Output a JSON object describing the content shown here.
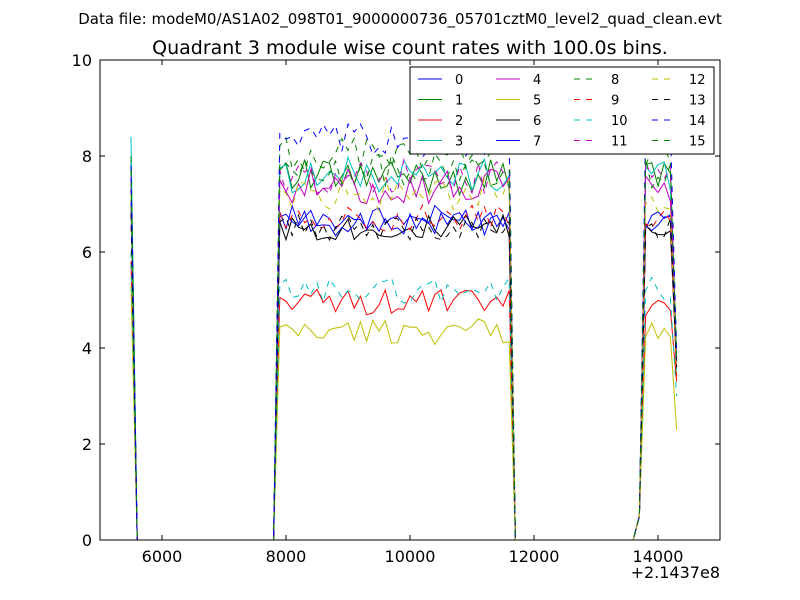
{
  "chart_data": {
    "type": "line",
    "suptitle": "Data file: modeM0/AS1A02_098T01_9000000736_05701cztM0_level2_quad_clean.evt",
    "title": "Quadrant 3 module wise count rates with 100.0s bins.",
    "xlabel": "",
    "ylabel": "",
    "x_offset_label": "+2.1437e8",
    "xlim": [
      5000,
      15000
    ],
    "ylim": [
      0,
      10
    ],
    "xticks": [
      6000,
      8000,
      10000,
      12000,
      14000
    ],
    "xtick_labels": [
      "6000",
      "8000",
      "10000",
      "12000",
      "14000"
    ],
    "yticks": [
      0,
      2,
      4,
      6,
      8,
      10
    ],
    "ytick_labels": [
      "0",
      "2",
      "4",
      "6",
      "8",
      "10"
    ],
    "grid": false,
    "legend": {
      "position": "top-right",
      "columns": 4
    },
    "x": [
      5500,
      5600,
      5700,
      5800,
      7800,
      7900,
      8000,
      8100,
      8200,
      8300,
      8400,
      8500,
      8600,
      8700,
      8800,
      8900,
      9000,
      9100,
      9200,
      9300,
      9400,
      9500,
      9600,
      9700,
      9800,
      9900,
      10000,
      10100,
      10200,
      10300,
      10400,
      10500,
      10600,
      10700,
      10800,
      10900,
      11000,
      11100,
      11200,
      11300,
      11400,
      11500,
      11600,
      11700,
      11800,
      13600,
      13700,
      13800,
      13900,
      14000,
      14100,
      14200,
      14300
    ],
    "series": [
      {
        "name": "0",
        "color": "#0000ff",
        "dash": "solid",
        "level": 6.7,
        "start": 7.7,
        "tail": 3.7,
        "values_sample_note": ""
      },
      {
        "name": "1",
        "color": "#008000",
        "dash": "solid",
        "level": 7.55,
        "start": 7.9,
        "tail": 3.8
      },
      {
        "name": "2",
        "color": "#ff0000",
        "dash": "solid",
        "level": 4.95,
        "start": 5.8,
        "tail": 3.3
      },
      {
        "name": "3",
        "color": "#00bfbf",
        "dash": "solid",
        "level": 7.6,
        "start": 8.4,
        "tail": 3.5
      },
      {
        "name": "4",
        "color": "#bf00bf",
        "dash": "solid",
        "level": 7.35,
        "start": 7.6,
        "tail": 3.6
      },
      {
        "name": "5",
        "color": "#bfbf00",
        "dash": "solid",
        "level": 4.35,
        "start": 5.3,
        "tail": 2.3
      },
      {
        "name": "6",
        "color": "#000000",
        "dash": "solid",
        "level": 6.5,
        "start": 7.3,
        "tail": 3.6
      },
      {
        "name": "7",
        "color": "#0000ff",
        "dash": "solid",
        "level": 6.6,
        "start": 7.0,
        "tail": 3.7
      },
      {
        "name": "8",
        "color": "#008000",
        "dash": "dashed",
        "level": 8.05,
        "start": 8.0,
        "tail": 4.0
      },
      {
        "name": "9",
        "color": "#ff0000",
        "dash": "dashed",
        "level": 6.7,
        "start": 6.8,
        "tail": 3.4
      },
      {
        "name": "10",
        "color": "#00bfbf",
        "dash": "dashed",
        "level": 5.2,
        "start": 6.0,
        "tail": 3.0
      },
      {
        "name": "11",
        "color": "#bf00bf",
        "dash": "dashed",
        "level": 7.55,
        "start": 7.5,
        "tail": 3.7
      },
      {
        "name": "12",
        "color": "#bfbf00",
        "dash": "dashed",
        "level": 7.2,
        "start": 7.2,
        "tail": 3.5
      },
      {
        "name": "13",
        "color": "#000000",
        "dash": "dashed",
        "level": 6.5,
        "start": 6.8,
        "tail": 3.6
      },
      {
        "name": "14",
        "color": "#0000ff",
        "dash": "dashed",
        "level": 8.3,
        "start": 7.8,
        "tail": 3.9
      },
      {
        "name": "15",
        "color": "#008000",
        "dash": "dashed",
        "level": 7.7,
        "start": 7.7,
        "tail": 3.8
      }
    ]
  }
}
